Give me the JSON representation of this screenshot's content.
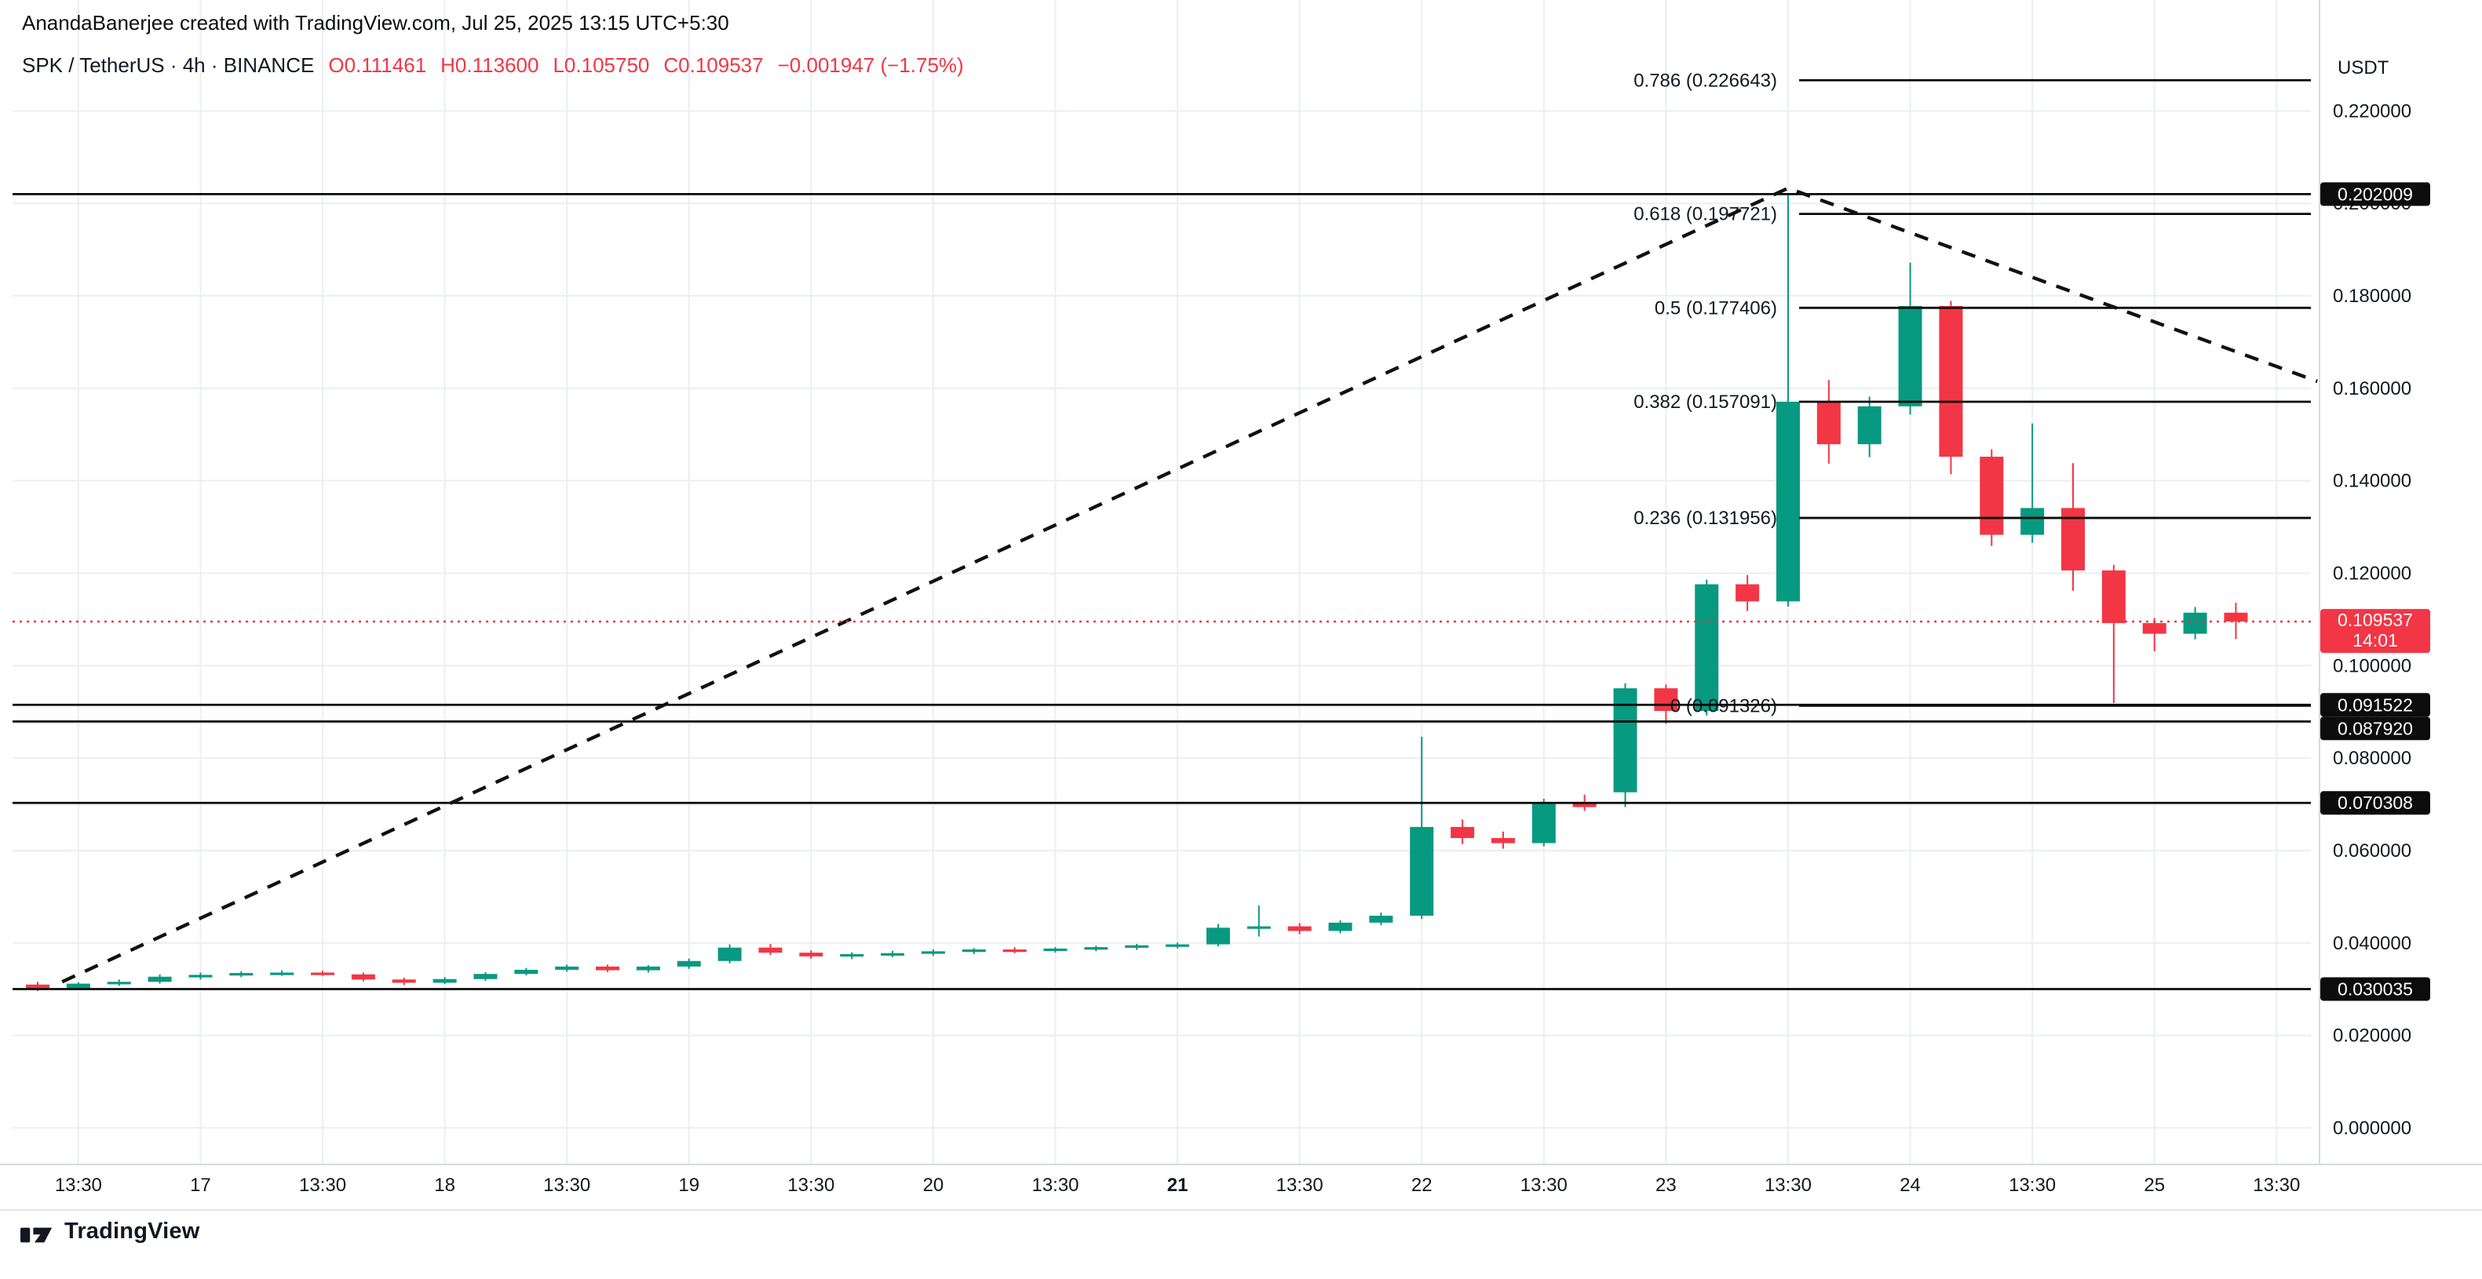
{
  "header": {
    "attribution": "AnandaBanerjee created with TradingView.com, Jul 25, 2025 13:15 UTC+5:30",
    "symbol": {
      "title": "SPK / TetherUS · 4h · BINANCE",
      "open": "O0.111461",
      "high": "H0.113600",
      "low": "L0.105750",
      "close": "C0.109537",
      "change": "−0.001947 (−1.75%)"
    }
  },
  "price_axis": {
    "currency": "USDT",
    "min": 0.0,
    "max": 0.22,
    "step": 0.02,
    "decimals": 6
  },
  "footer": {
    "brand": "TradingView"
  },
  "chart_data": {
    "type": "candlestick",
    "title": "SPK / TetherUS 4h BINANCE",
    "up_color": "#089981",
    "down_color": "#F23645",
    "grid": true,
    "candles": [
      [
        0.031,
        0.0316,
        0.0296,
        0.0302
      ],
      [
        0.0302,
        0.0315,
        0.0299,
        0.0312
      ],
      [
        0.0312,
        0.0321,
        0.0307,
        0.0316
      ],
      [
        0.0316,
        0.0332,
        0.0312,
        0.0327
      ],
      [
        0.0327,
        0.0336,
        0.0321,
        0.0331
      ],
      [
        0.0331,
        0.0339,
        0.0326,
        0.0335
      ],
      [
        0.0335,
        0.0341,
        0.0329,
        0.0336
      ],
      [
        0.0336,
        0.034,
        0.0329,
        0.0332
      ],
      [
        0.0332,
        0.0336,
        0.0317,
        0.0321
      ],
      [
        0.0321,
        0.0325,
        0.0309,
        0.0314
      ],
      [
        0.0314,
        0.0326,
        0.0311,
        0.0322
      ],
      [
        0.0322,
        0.0337,
        0.0318,
        0.0333
      ],
      [
        0.0333,
        0.0346,
        0.033,
        0.0342
      ],
      [
        0.0342,
        0.0353,
        0.0338,
        0.0349
      ],
      [
        0.0349,
        0.0353,
        0.0337,
        0.0341
      ],
      [
        0.0341,
        0.0352,
        0.0336,
        0.0349
      ],
      [
        0.0349,
        0.0366,
        0.0344,
        0.0361
      ],
      [
        0.0361,
        0.0397,
        0.0356,
        0.039
      ],
      [
        0.039,
        0.0398,
        0.0374,
        0.0379
      ],
      [
        0.0379,
        0.0384,
        0.0366,
        0.0371
      ],
      [
        0.0371,
        0.038,
        0.0365,
        0.0376
      ],
      [
        0.0376,
        0.0383,
        0.0369,
        0.0378
      ],
      [
        0.0378,
        0.0386,
        0.0372,
        0.0382
      ],
      [
        0.0382,
        0.0389,
        0.0376,
        0.0386
      ],
      [
        0.0386,
        0.0391,
        0.0378,
        0.0383
      ],
      [
        0.0383,
        0.0391,
        0.0379,
        0.0388
      ],
      [
        0.0388,
        0.0394,
        0.0382,
        0.0391
      ],
      [
        0.0391,
        0.0398,
        0.0385,
        0.0395
      ],
      [
        0.0395,
        0.0401,
        0.0388,
        0.0397
      ],
      [
        0.0397,
        0.0441,
        0.0393,
        0.0433
      ],
      [
        0.0433,
        0.0481,
        0.0414,
        0.0436
      ],
      [
        0.0436,
        0.0443,
        0.0419,
        0.0426
      ],
      [
        0.0426,
        0.0449,
        0.0421,
        0.0444
      ],
      [
        0.0444,
        0.0466,
        0.0438,
        0.0459
      ],
      [
        0.0459,
        0.0846,
        0.0452,
        0.0651
      ],
      [
        0.0651,
        0.0667,
        0.0614,
        0.0627
      ],
      [
        0.0627,
        0.0641,
        0.0604,
        0.0616
      ],
      [
        0.0616,
        0.0712,
        0.0609,
        0.0701
      ],
      [
        0.0701,
        0.0721,
        0.0686,
        0.0694
      ],
      [
        0.0726,
        0.0962,
        0.0694,
        0.0951
      ],
      [
        0.0951,
        0.0959,
        0.0874,
        0.0902
      ],
      [
        0.0902,
        0.1186,
        0.0892,
        0.1176
      ],
      [
        0.1176,
        0.1196,
        0.1118,
        0.1139
      ],
      [
        0.1139,
        0.202,
        0.1128,
        0.1571
      ],
      [
        0.1571,
        0.1618,
        0.1437,
        0.1479
      ],
      [
        0.1479,
        0.1582,
        0.1451,
        0.1561
      ],
      [
        0.1561,
        0.1872,
        0.1543,
        0.1778
      ],
      [
        0.1778,
        0.1789,
        0.1414,
        0.1452
      ],
      [
        0.1452,
        0.1468,
        0.1259,
        0.1283
      ],
      [
        0.1283,
        0.1524,
        0.1266,
        0.1341
      ],
      [
        0.1341,
        0.1438,
        0.1162,
        0.1206
      ],
      [
        0.1206,
        0.1218,
        0.0919,
        0.1092
      ],
      [
        0.1092,
        0.1103,
        0.1031,
        0.1069
      ],
      [
        0.1069,
        0.1127,
        0.1057,
        0.111461
      ],
      [
        0.111461,
        0.1136,
        0.10575,
        0.109537
      ]
    ],
    "time_labels": [
      {
        "text": "13:30",
        "candle_index": 1,
        "bold": false
      },
      {
        "text": "17",
        "candle_index": 4,
        "bold": false
      },
      {
        "text": "13:30",
        "candle_index": 7,
        "bold": false
      },
      {
        "text": "18",
        "candle_index": 10,
        "bold": false
      },
      {
        "text": "13:30",
        "candle_index": 13,
        "bold": false
      },
      {
        "text": "19",
        "candle_index": 16,
        "bold": false
      },
      {
        "text": "13:30",
        "candle_index": 19,
        "bold": false
      },
      {
        "text": "20",
        "candle_index": 22,
        "bold": false
      },
      {
        "text": "13:30",
        "candle_index": 25,
        "bold": false
      },
      {
        "text": "21",
        "candle_index": 28,
        "bold": true
      },
      {
        "text": "13:30",
        "candle_index": 31,
        "bold": false
      },
      {
        "text": "22",
        "candle_index": 34,
        "bold": false
      },
      {
        "text": "13:30",
        "candle_index": 37,
        "bold": false
      },
      {
        "text": "23",
        "candle_index": 40,
        "bold": false
      },
      {
        "text": "13:30",
        "candle_index": 43,
        "bold": false
      },
      {
        "text": "24",
        "candle_index": 46,
        "bold": false
      },
      {
        "text": "13:30",
        "candle_index": 49,
        "bold": false
      },
      {
        "text": "25",
        "candle_index": 52,
        "bold": false
      },
      {
        "text": "13:30",
        "candle_index": 55,
        "bold": false
      }
    ],
    "fib_levels": [
      {
        "label": "0.786 (0.226643)",
        "price": 0.226643
      },
      {
        "label": "0.618 (0.197721)",
        "price": 0.197721
      },
      {
        "label": "0.5 (0.177406)",
        "price": 0.177406
      },
      {
        "label": "0.382 (0.157091)",
        "price": 0.157091
      },
      {
        "label": "0.236 (0.131956)",
        "price": 0.131956
      },
      {
        "label": "0 (0.091326)",
        "price": 0.091326
      }
    ],
    "price_lines": [
      {
        "price": 0.202009,
        "label": "0.202009"
      },
      {
        "price": 0.091522,
        "label": "0.091522"
      },
      {
        "price": 0.08792,
        "label": "0.087920"
      },
      {
        "price": 0.070308,
        "label": "0.070308"
      },
      {
        "price": 0.030035,
        "label": "0.030035"
      }
    ],
    "last_price": {
      "value": "0.109537",
      "price": 0.109537,
      "countdown": "14:01",
      "color": "#F23645"
    },
    "trendline": {
      "style": "dashed",
      "color": "#111111",
      "points": [
        [
          0.6,
          0.0316
        ],
        [
          43,
          0.2033
        ],
        [
          56,
          0.1615
        ]
      ]
    }
  }
}
